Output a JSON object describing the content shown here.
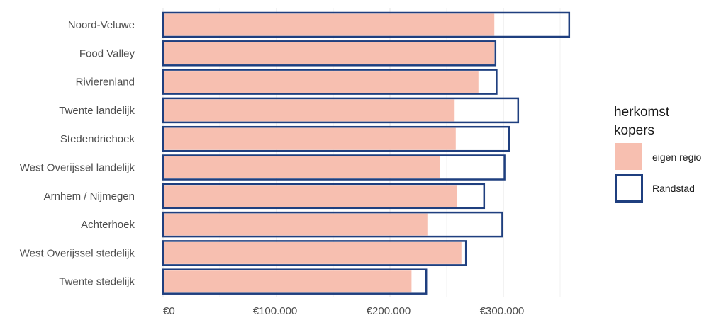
{
  "chart_data": {
    "type": "bar",
    "orientation": "horizontal",
    "categories": [
      "Noord-Veluwe",
      "Food Valley",
      "Rivierenland",
      "Twente landelijk",
      "Stedendriehoek",
      "West Overijssel landelijk",
      "Arnhem / Nijmegen",
      "Achterhoek",
      "West Overijssel stedelijk",
      "Twente stedelijk"
    ],
    "series": [
      {
        "name": "eigen regio",
        "color": "#f7bfb0",
        "style": "filled",
        "values": [
          292000,
          292000,
          278000,
          257000,
          258000,
          244000,
          259000,
          233000,
          263000,
          219000
        ]
      },
      {
        "name": "Randstad",
        "color": "#1f3f7f",
        "style": "outline",
        "values": [
          358000,
          293000,
          294000,
          313000,
          305000,
          301000,
          283000,
          299000,
          267000,
          232000
        ]
      }
    ],
    "x_ticks": [
      "€0",
      "€100.000",
      "€200.000",
      "€300.000"
    ],
    "x_tick_values": [
      0,
      100000,
      200000,
      300000
    ],
    "xlim": [
      0,
      360000
    ],
    "grid": true,
    "legend": {
      "title_lines": [
        "herkomst",
        "kopers"
      ],
      "placement": "right"
    },
    "title": "",
    "xlabel": "",
    "ylabel": ""
  }
}
